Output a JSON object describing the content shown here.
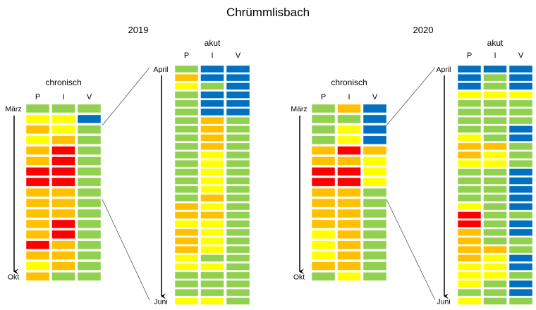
{
  "title": "Chrümmlisbach",
  "colors": {
    "G": "#92d050",
    "Y": "#ffff00",
    "O": "#ffc000",
    "R": "#ff0000",
    "B": "#0070c0"
  },
  "column_headers": [
    "P",
    "I",
    "V"
  ],
  "panels": [
    {
      "year": "2019",
      "chronisch": {
        "label": "chronisch",
        "start": "März",
        "end": "Okt",
        "rows": [
          "GGG",
          "YYB",
          "OYG",
          "YOG",
          "ORG",
          "ORG",
          "RRG",
          "RRG",
          "OOG",
          "OOG",
          "OOG",
          "ORG",
          "ORG",
          "ROG",
          "OOG",
          "YOG",
          "OGG"
        ]
      },
      "akut": {
        "label": "akut",
        "start": "April",
        "end": "Juni",
        "rows": [
          "GBB",
          "OBB",
          "YGB",
          "GBB",
          "GBB",
          "GBB",
          "GOG",
          "GOG",
          "GOG",
          "GOG",
          "GYG",
          "GYG",
          "GYG",
          "GYG",
          "GYG",
          "GOG",
          "OYG",
          "OOG",
          "YYG",
          "OYG",
          "OYG",
          "OYG",
          "YGG",
          "YYG",
          "GGG",
          "GGG",
          "GGG",
          "YYG"
        ]
      }
    },
    {
      "year": "2020",
      "chronisch": {
        "label": "chronisch",
        "start": "März",
        "end": "Okt",
        "rows": [
          "GOB",
          "GGB",
          "GYB",
          "GYB",
          "ORO",
          "OOY",
          "RRY",
          "RRY",
          "OOG",
          "OOG",
          "OOG",
          "OOG",
          "YOG",
          "YOG",
          "YOG",
          "OOG",
          "GYG"
        ]
      },
      "akut": {
        "label": "akut",
        "start": "April",
        "end": "Juni",
        "rows": [
          "BBB",
          "BGB",
          "BGB",
          "YYY",
          "GGG",
          "GGG",
          "GGG",
          "GGB",
          "YGB",
          "OOG",
          "OYG",
          "YYG",
          "GGB",
          "GGB",
          "GGB",
          "GGB",
          "YGB",
          "RGG",
          "RGB",
          "OGB",
          "OGG",
          "OOG",
          "OYB",
          "YYB",
          "YYG",
          "YGB",
          "GGB",
          "YGG"
        ]
      }
    }
  ]
}
